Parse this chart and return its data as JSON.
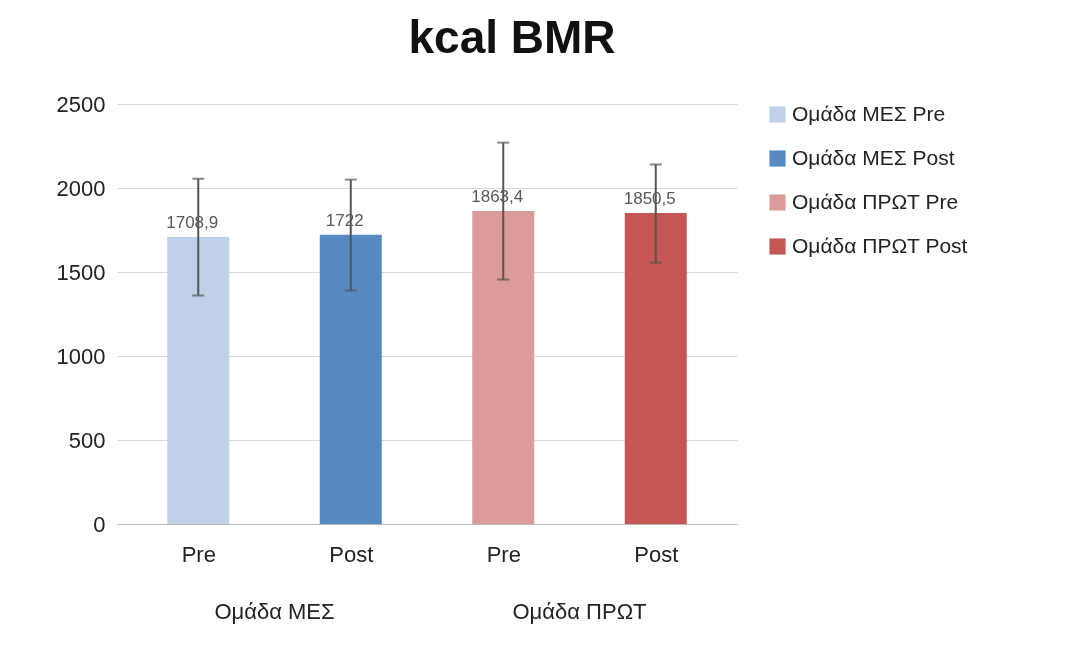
{
  "chart_data": {
    "type": "bar",
    "title": "kcal BMR",
    "categories": [
      "Pre",
      "Post",
      "Pre",
      "Post"
    ],
    "annotations": [
      "Ομάδα ΜΕΣ",
      "Ομάδα ΠΡΩΤ"
    ],
    "series": [
      {
        "name": "Ομάδα ΜΕΣ Pre",
        "color": "#bfd0e8",
        "values": [
          1708.9,
          null,
          null,
          null
        ],
        "errors": [
          [
            1360,
            2055
          ],
          null,
          null,
          null
        ],
        "value_labels": [
          "1708,9",
          null,
          null,
          null
        ]
      },
      {
        "name": "Ομάδα ΜΕΣ Post",
        "color": "#5688c2",
        "values": [
          null,
          1722,
          null,
          null
        ],
        "errors": [
          null,
          [
            1390,
            2050
          ],
          null,
          null
        ],
        "value_labels": [
          null,
          "1722",
          null,
          null
        ]
      },
      {
        "name": "Ομάδα ΠΡΩΤ Pre",
        "color": "#dc9b98",
        "values": [
          null,
          null,
          1863.4,
          null
        ],
        "errors": [
          null,
          null,
          [
            1455,
            2270
          ],
          null
        ],
        "value_labels": [
          null,
          null,
          "1863,4",
          null
        ]
      },
      {
        "name": "Ομάδα ΠΡΩΤ Post",
        "color": "#c55653",
        "values": [
          null,
          null,
          null,
          1850.5
        ],
        "errors": [
          null,
          null,
          null,
          [
            1555,
            2140
          ]
        ],
        "value_labels": [
          null,
          null,
          null,
          "1850,5"
        ]
      }
    ],
    "ylim": [
      0,
      2500
    ],
    "yticks": [
      0,
      500,
      1000,
      1500,
      2000,
      2500
    ],
    "grid": "y",
    "legend": "right"
  }
}
